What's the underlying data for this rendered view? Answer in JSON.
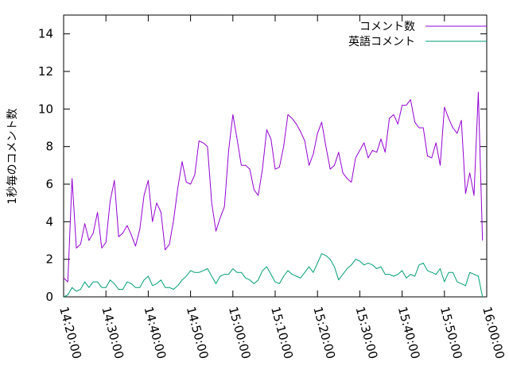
{
  "chart_data": {
    "type": "line",
    "ylabel": "1秒毎のコメント数",
    "xlim": [
      "14:20:00",
      "16:00:00"
    ],
    "ylim": [
      0,
      15
    ],
    "x_ticks": [
      "14:20:00",
      "14:30:00",
      "14:40:00",
      "14:50:00",
      "15:00:00",
      "15:10:00",
      "15:20:00",
      "15:30:00",
      "15:40:00",
      "15:50:00",
      "16:00:00"
    ],
    "y_ticks": [
      "0",
      "2",
      "4",
      "6",
      "8",
      "10",
      "12",
      "14"
    ],
    "legend_position": "top-right",
    "grid": false,
    "series": [
      {
        "name": "コメント数",
        "color": "#9400d3",
        "points": [
          [
            "14:20:00",
            1.0
          ],
          [
            "14:21:00",
            0.8
          ],
          [
            "14:22:00",
            6.3
          ],
          [
            "14:23:00",
            2.6
          ],
          [
            "14:24:00",
            2.8
          ],
          [
            "14:25:00",
            3.9
          ],
          [
            "14:26:00",
            3.0
          ],
          [
            "14:27:00",
            3.4
          ],
          [
            "14:28:00",
            4.5
          ],
          [
            "14:29:00",
            2.6
          ],
          [
            "14:30:00",
            2.9
          ],
          [
            "14:31:00",
            5.1
          ],
          [
            "14:32:00",
            6.2
          ],
          [
            "14:33:00",
            3.2
          ],
          [
            "14:34:00",
            3.4
          ],
          [
            "14:35:00",
            3.8
          ],
          [
            "14:36:00",
            3.3
          ],
          [
            "14:37:00",
            2.7
          ],
          [
            "14:38:00",
            3.6
          ],
          [
            "14:39:00",
            5.4
          ],
          [
            "14:40:00",
            6.2
          ],
          [
            "14:41:00",
            4.0
          ],
          [
            "14:42:00",
            5.0
          ],
          [
            "14:43:00",
            4.5
          ],
          [
            "14:44:00",
            2.5
          ],
          [
            "14:45:00",
            2.8
          ],
          [
            "14:46:00",
            4.1
          ],
          [
            "14:47:00",
            5.8
          ],
          [
            "14:48:00",
            7.2
          ],
          [
            "14:49:00",
            6.1
          ],
          [
            "14:50:00",
            6.0
          ],
          [
            "14:51:00",
            6.5
          ],
          [
            "14:52:00",
            8.3
          ],
          [
            "14:53:00",
            8.2
          ],
          [
            "14:54:00",
            8.0
          ],
          [
            "14:55:00",
            5.0
          ],
          [
            "14:56:00",
            3.5
          ],
          [
            "14:57:00",
            4.2
          ],
          [
            "14:58:00",
            4.8
          ],
          [
            "14:59:00",
            7.8
          ],
          [
            "15:00:00",
            9.7
          ],
          [
            "15:01:00",
            8.4
          ],
          [
            "15:02:00",
            7.0
          ],
          [
            "15:03:00",
            7.0
          ],
          [
            "15:04:00",
            6.8
          ],
          [
            "15:05:00",
            5.7
          ],
          [
            "15:06:00",
            5.4
          ],
          [
            "15:07:00",
            6.8
          ],
          [
            "15:08:00",
            8.9
          ],
          [
            "15:09:00",
            8.4
          ],
          [
            "15:10:00",
            6.8
          ],
          [
            "15:11:00",
            6.9
          ],
          [
            "15:12:00",
            8.0
          ],
          [
            "15:13:00",
            9.7
          ],
          [
            "15:14:00",
            9.5
          ],
          [
            "15:15:00",
            9.2
          ],
          [
            "15:16:00",
            8.8
          ],
          [
            "15:17:00",
            8.3
          ],
          [
            "15:18:00",
            7.0
          ],
          [
            "15:19:00",
            7.6
          ],
          [
            "15:20:00",
            8.7
          ],
          [
            "15:21:00",
            9.3
          ],
          [
            "15:22:00",
            8.0
          ],
          [
            "15:23:00",
            6.8
          ],
          [
            "15:24:00",
            7.0
          ],
          [
            "15:25:00",
            7.7
          ],
          [
            "15:26:00",
            6.6
          ],
          [
            "15:27:00",
            6.3
          ],
          [
            "15:28:00",
            6.1
          ],
          [
            "15:29:00",
            7.4
          ],
          [
            "15:30:00",
            7.8
          ],
          [
            "15:31:00",
            8.2
          ],
          [
            "15:32:00",
            7.4
          ],
          [
            "15:33:00",
            7.8
          ],
          [
            "15:34:00",
            7.7
          ],
          [
            "15:35:00",
            8.4
          ],
          [
            "15:36:00",
            7.7
          ],
          [
            "15:37:00",
            9.5
          ],
          [
            "15:38:00",
            9.7
          ],
          [
            "15:39:00",
            9.2
          ],
          [
            "15:40:00",
            10.2
          ],
          [
            "15:41:00",
            10.2
          ],
          [
            "15:42:00",
            10.5
          ],
          [
            "15:43:00",
            9.3
          ],
          [
            "15:44:00",
            9.0
          ],
          [
            "15:45:00",
            9.0
          ],
          [
            "15:46:00",
            7.5
          ],
          [
            "15:47:00",
            7.4
          ],
          [
            "15:48:00",
            8.2
          ],
          [
            "15:49:00",
            7.0
          ],
          [
            "15:50:00",
            10.1
          ],
          [
            "15:51:00",
            9.5
          ],
          [
            "15:52:00",
            9.0
          ],
          [
            "15:53:00",
            8.7
          ],
          [
            "15:54:00",
            9.4
          ],
          [
            "15:55:00",
            5.5
          ],
          [
            "15:56:00",
            6.6
          ],
          [
            "15:57:00",
            5.4
          ],
          [
            "15:58:00",
            10.9
          ],
          [
            "15:59:00",
            3.0
          ]
        ]
      },
      {
        "name": "英語コメント",
        "color": "#009e73",
        "points": [
          [
            "14:20:00",
            0.0
          ],
          [
            "14:21:00",
            0.1
          ],
          [
            "14:22:00",
            0.5
          ],
          [
            "14:23:00",
            0.3
          ],
          [
            "14:24:00",
            0.4
          ],
          [
            "14:25:00",
            0.8
          ],
          [
            "14:26:00",
            0.5
          ],
          [
            "14:27:00",
            0.8
          ],
          [
            "14:28:00",
            0.8
          ],
          [
            "14:29:00",
            0.5
          ],
          [
            "14:30:00",
            0.5
          ],
          [
            "14:31:00",
            0.9
          ],
          [
            "14:32:00",
            0.7
          ],
          [
            "14:33:00",
            0.4
          ],
          [
            "14:34:00",
            0.4
          ],
          [
            "14:35:00",
            0.8
          ],
          [
            "14:36:00",
            0.7
          ],
          [
            "14:37:00",
            0.5
          ],
          [
            "14:38:00",
            0.5
          ],
          [
            "14:39:00",
            0.9
          ],
          [
            "14:40:00",
            1.1
          ],
          [
            "14:41:00",
            0.6
          ],
          [
            "14:42:00",
            0.7
          ],
          [
            "14:43:00",
            0.9
          ],
          [
            "14:44:00",
            0.5
          ],
          [
            "14:45:00",
            0.5
          ],
          [
            "14:46:00",
            0.4
          ],
          [
            "14:47:00",
            0.6
          ],
          [
            "14:48:00",
            0.9
          ],
          [
            "14:49:00",
            1.1
          ],
          [
            "14:50:00",
            1.4
          ],
          [
            "14:51:00",
            1.3
          ],
          [
            "14:52:00",
            1.3
          ],
          [
            "14:53:00",
            1.4
          ],
          [
            "14:54:00",
            1.5
          ],
          [
            "14:55:00",
            1.1
          ],
          [
            "14:56:00",
            0.7
          ],
          [
            "14:57:00",
            1.1
          ],
          [
            "14:58:00",
            1.2
          ],
          [
            "14:59:00",
            1.2
          ],
          [
            "15:00:00",
            1.5
          ],
          [
            "15:01:00",
            1.3
          ],
          [
            "15:02:00",
            1.3
          ],
          [
            "15:03:00",
            1.0
          ],
          [
            "15:04:00",
            0.9
          ],
          [
            "15:05:00",
            0.7
          ],
          [
            "15:06:00",
            0.9
          ],
          [
            "15:07:00",
            1.4
          ],
          [
            "15:08:00",
            1.6
          ],
          [
            "15:09:00",
            1.2
          ],
          [
            "15:10:00",
            0.8
          ],
          [
            "15:11:00",
            0.7
          ],
          [
            "15:12:00",
            1.1
          ],
          [
            "15:13:00",
            1.4
          ],
          [
            "15:14:00",
            1.2
          ],
          [
            "15:15:00",
            1.1
          ],
          [
            "15:16:00",
            1.0
          ],
          [
            "15:17:00",
            1.3
          ],
          [
            "15:18:00",
            1.6
          ],
          [
            "15:19:00",
            1.3
          ],
          [
            "15:20:00",
            1.8
          ],
          [
            "15:21:00",
            2.3
          ],
          [
            "15:22:00",
            2.2
          ],
          [
            "15:23:00",
            2.0
          ],
          [
            "15:24:00",
            1.6
          ],
          [
            "15:25:00",
            0.9
          ],
          [
            "15:26:00",
            1.2
          ],
          [
            "15:27:00",
            1.5
          ],
          [
            "15:28:00",
            1.7
          ],
          [
            "15:29:00",
            2.0
          ],
          [
            "15:30:00",
            1.9
          ],
          [
            "15:31:00",
            1.7
          ],
          [
            "15:32:00",
            1.8
          ],
          [
            "15:33:00",
            1.7
          ],
          [
            "15:34:00",
            1.5
          ],
          [
            "15:35:00",
            1.6
          ],
          [
            "15:36:00",
            1.2
          ],
          [
            "15:37:00",
            1.2
          ],
          [
            "15:38:00",
            1.1
          ],
          [
            "15:39:00",
            1.2
          ],
          [
            "15:40:00",
            1.4
          ],
          [
            "15:41:00",
            1.0
          ],
          [
            "15:42:00",
            1.2
          ],
          [
            "15:43:00",
            1.1
          ],
          [
            "15:44:00",
            1.7
          ],
          [
            "15:45:00",
            1.8
          ],
          [
            "15:46:00",
            1.4
          ],
          [
            "15:47:00",
            1.3
          ],
          [
            "15:48:00",
            1.2
          ],
          [
            "15:49:00",
            1.5
          ],
          [
            "15:50:00",
            0.8
          ],
          [
            "15:51:00",
            1.3
          ],
          [
            "15:52:00",
            1.3
          ],
          [
            "15:53:00",
            0.8
          ],
          [
            "15:54:00",
            0.7
          ],
          [
            "15:55:00",
            0.6
          ],
          [
            "15:56:00",
            1.3
          ],
          [
            "15:57:00",
            1.2
          ],
          [
            "15:58:00",
            1.1
          ],
          [
            "15:59:00",
            0.0
          ]
        ]
      }
    ]
  }
}
